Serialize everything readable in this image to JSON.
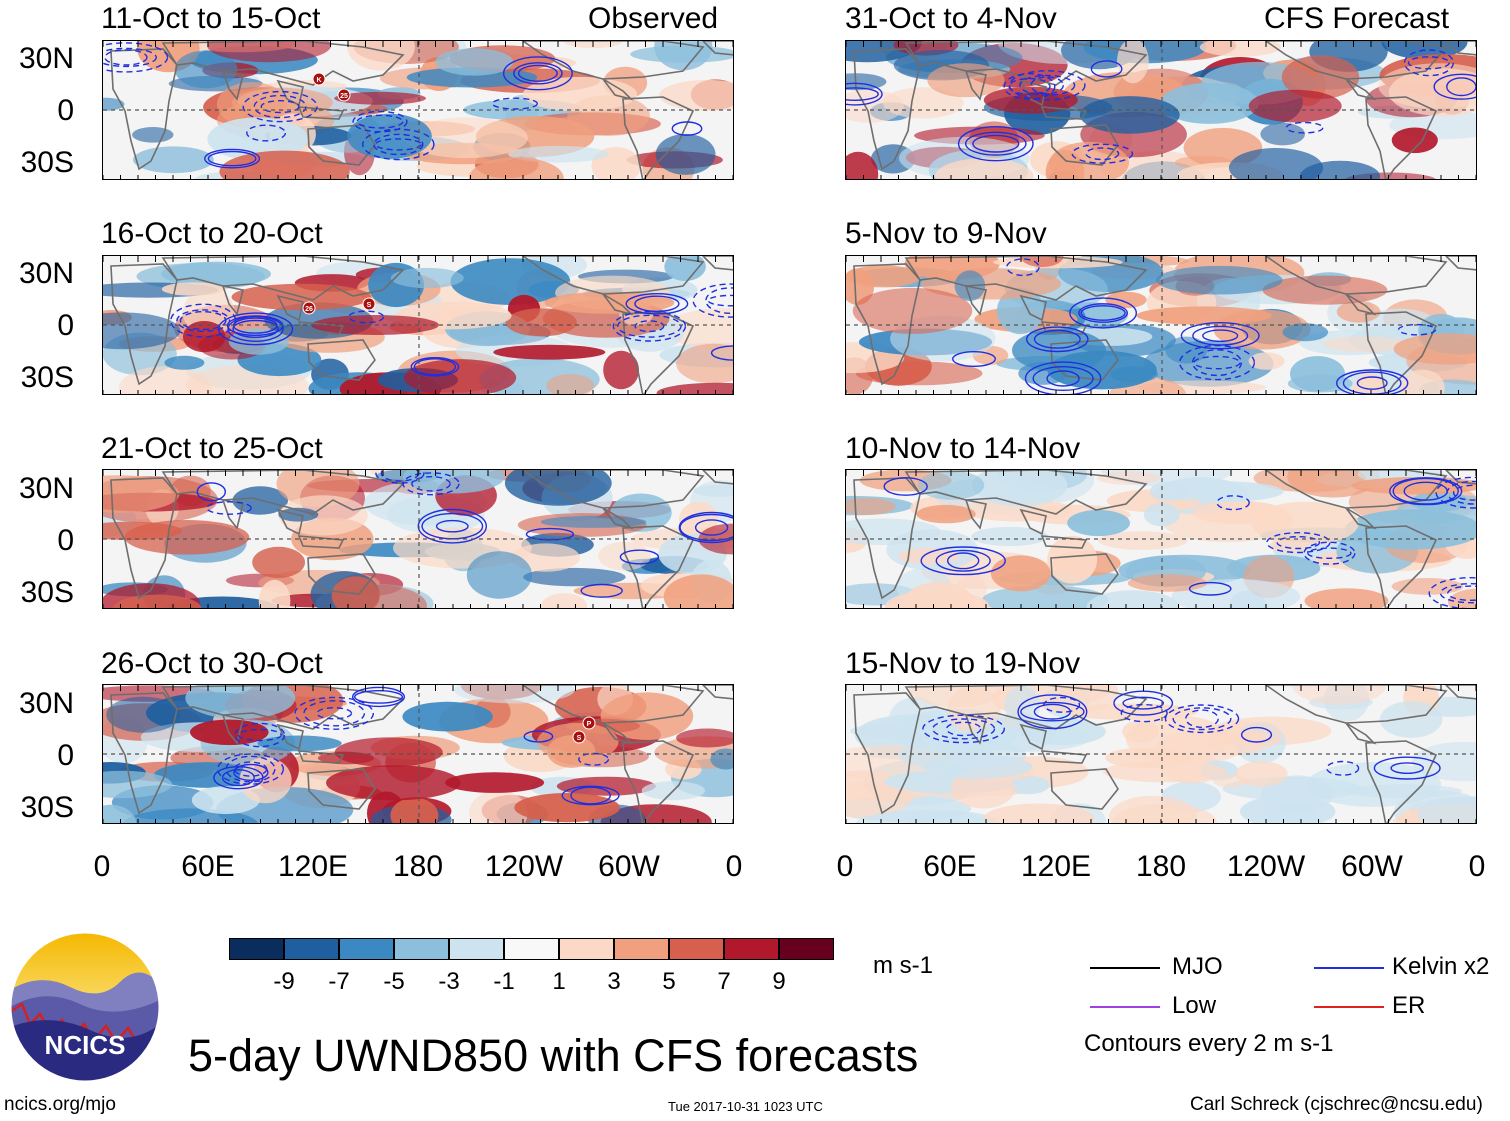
{
  "left_header": "Observed",
  "right_header": "CFS Forecast",
  "panels_left": [
    {
      "title": "11-Oct to 15-Oct",
      "storms": [
        "K",
        "25"
      ]
    },
    {
      "title": "16-Oct to 20-Oct",
      "storms": [
        "26",
        "S"
      ]
    },
    {
      "title": "21-Oct to 25-Oct",
      "storms": []
    },
    {
      "title": "26-Oct to 30-Oct",
      "storms": [
        "P",
        "S"
      ]
    }
  ],
  "panels_right": [
    {
      "title": "31-Oct to 4-Nov"
    },
    {
      "title": "5-Nov to 9-Nov"
    },
    {
      "title": "10-Nov to 14-Nov"
    },
    {
      "title": "15-Nov to 19-Nov"
    }
  ],
  "lat_labels": [
    "30N",
    "0",
    "30S"
  ],
  "lon_labels": [
    "0",
    "60E",
    "120E",
    "180",
    "120W",
    "60W",
    "0"
  ],
  "colorbar": {
    "unit": "m s-1",
    "colors": [
      "#0b2d5e",
      "#1f5fa0",
      "#3b89c2",
      "#8cbfdc",
      "#cde3ef",
      "#f8f8f8",
      "#fbd9c6",
      "#f0a07e",
      "#d6604d",
      "#b2182b",
      "#67001f"
    ],
    "labels": [
      "-9",
      "-7",
      "-5",
      "-3",
      "-1",
      "1",
      "3",
      "5",
      "7",
      "9"
    ]
  },
  "legend": {
    "items": [
      {
        "label": "MJO",
        "color": "#000000"
      },
      {
        "label": "Kelvin x2",
        "color": "#1f2fe0"
      },
      {
        "label": "Low",
        "color": "#a040e0"
      },
      {
        "label": "ER",
        "color": "#e02020"
      }
    ],
    "contours_note": "Contours every 2 m s-1"
  },
  "logo_text": "NCICS",
  "main_title": "5-day UWND850 with CFS forecasts",
  "footer": {
    "left": "ncics.org/mjo",
    "center": "Tue 2017-10-31 1023 UTC",
    "right": "Carl Schreck (cjschrec@ncsu.edu)"
  }
}
